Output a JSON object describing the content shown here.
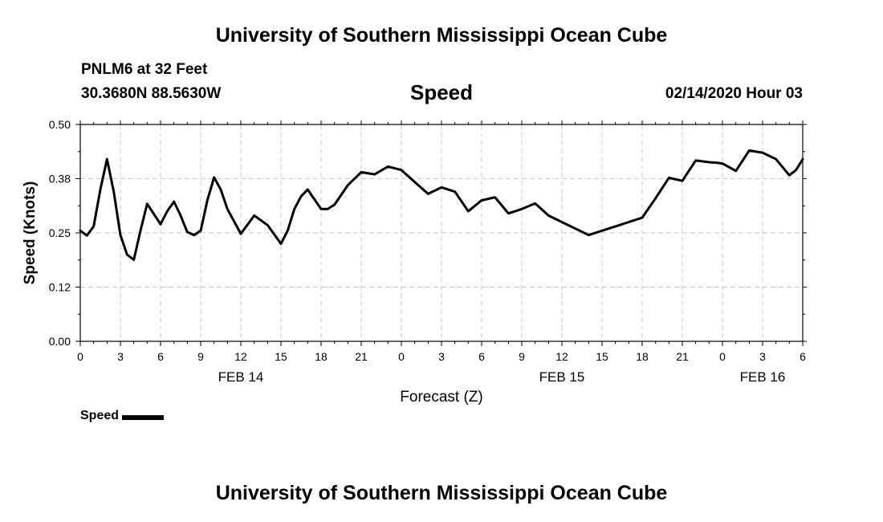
{
  "header": {
    "title": "University of Southern Mississippi Ocean Cube",
    "station": "PNLM6 at 32 Feet",
    "coordinates": "30.3680N 88.5630W",
    "datetime": "02/14/2020 Hour 03"
  },
  "footer": {
    "title": "University of Southern Mississippi Ocean Cube"
  },
  "legend": {
    "label": "Speed"
  },
  "colors": {
    "line": "#000000",
    "grid": "#c8c8c8",
    "axis": "#000000"
  },
  "chart_data": {
    "type": "line",
    "title": "Speed",
    "xlabel": "Forecast (Z)",
    "ylabel": "Speed (Knots)",
    "ylim": [
      0,
      0.5
    ],
    "xlim": [
      0,
      54
    ],
    "y_ticks": [
      "0.00",
      "0.12",
      "0.25",
      "0.38",
      "0.50"
    ],
    "y_tick_values": [
      0,
      0.125,
      0.25,
      0.375,
      0.5
    ],
    "x_tick_hours": [
      0,
      3,
      6,
      9,
      12,
      15,
      18,
      21,
      24,
      27,
      30,
      33,
      36,
      39,
      42,
      45,
      48,
      51,
      54
    ],
    "x_tick_labels": [
      "0",
      "3",
      "6",
      "9",
      "12",
      "15",
      "18",
      "21",
      "0",
      "3",
      "6",
      "9",
      "12",
      "15",
      "18",
      "21",
      "0",
      "3",
      "6"
    ],
    "day_labels": [
      {
        "label": "FEB 14",
        "hour": 12
      },
      {
        "label": "FEB 15",
        "hour": 36
      },
      {
        "label": "FEB 16",
        "hour": 51
      }
    ],
    "grid": true,
    "series": [
      {
        "name": "Speed",
        "x": [
          0,
          0.5,
          1,
          1.5,
          2,
          2.5,
          3,
          3.5,
          4,
          4.5,
          5,
          6,
          6.5,
          7,
          7.5,
          8,
          8.5,
          9,
          9.5,
          10,
          10.5,
          11,
          12,
          13,
          14,
          15,
          15.5,
          16,
          16.5,
          17,
          18,
          18.5,
          19,
          20,
          21,
          22,
          23,
          24,
          25,
          26,
          27,
          28,
          29,
          30,
          31,
          32,
          33,
          34,
          35,
          36,
          37,
          38,
          39,
          40,
          41,
          42,
          43,
          44,
          45,
          46,
          47,
          47.5,
          48,
          49,
          50,
          51,
          52,
          53,
          53.5,
          54
        ],
        "values": [
          0.255,
          0.244,
          0.265,
          0.35,
          0.42,
          0.345,
          0.245,
          0.2,
          0.188,
          0.255,
          0.317,
          0.27,
          0.3,
          0.322,
          0.29,
          0.252,
          0.245,
          0.255,
          0.325,
          0.378,
          0.35,
          0.305,
          0.248,
          0.29,
          0.268,
          0.225,
          0.255,
          0.305,
          0.334,
          0.35,
          0.305,
          0.305,
          0.315,
          0.36,
          0.39,
          0.385,
          0.403,
          0.395,
          0.367,
          0.34,
          0.355,
          0.345,
          0.3,
          0.325,
          0.332,
          0.295,
          0.305,
          0.318,
          0.29,
          0.275,
          0.26,
          0.245,
          0.255,
          0.265,
          0.275,
          0.285,
          0.33,
          0.377,
          0.37,
          0.417,
          0.413,
          0.412,
          0.41,
          0.393,
          0.44,
          0.435,
          0.42,
          0.383,
          0.395,
          0.42
        ]
      }
    ]
  }
}
